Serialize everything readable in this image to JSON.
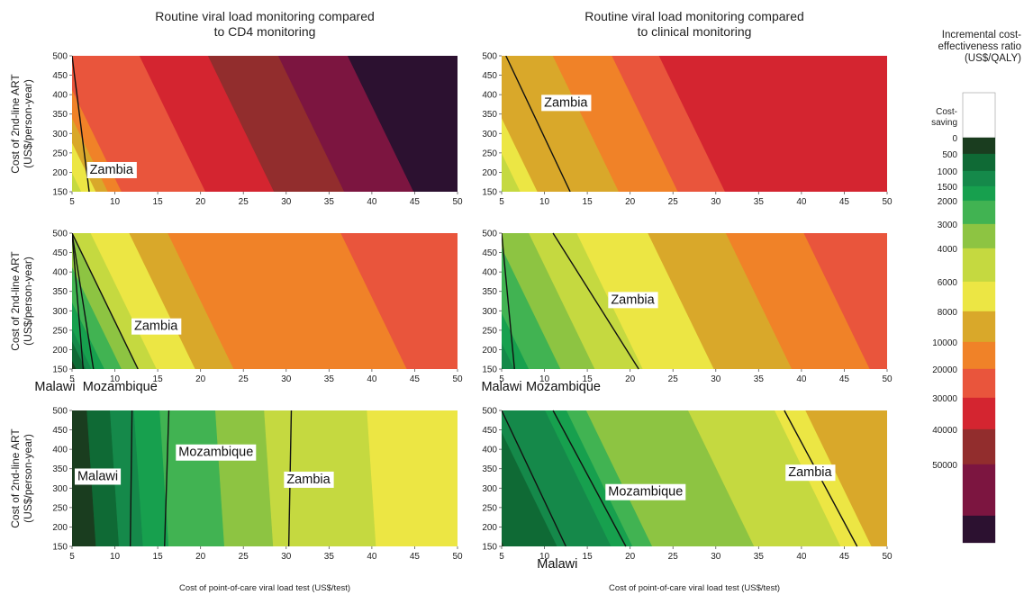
{
  "chart_data": {
    "type": "heatmap",
    "column_titles": [
      [
        "Routine viral load monitoring compared",
        "to CD4 monitoring"
      ],
      [
        "Routine viral load monitoring compared",
        "to clinical monitoring"
      ]
    ],
    "ylabel": [
      "Cost of 2nd-line ART",
      "(US$/person-year)"
    ],
    "xlabel": "Cost of point-of-care viral load test (US$/test)",
    "xticks": [
      5,
      10,
      15,
      20,
      25,
      30,
      35,
      40,
      45,
      50
    ],
    "yticks": [
      150,
      200,
      250,
      300,
      350,
      400,
      450,
      500
    ],
    "xlim": [
      5,
      50
    ],
    "ylim": [
      150,
      500
    ],
    "colorbar": {
      "title": [
        "Incremental cost-",
        "effectiveness ratio",
        "(US$/QALY)"
      ],
      "levels": [
        {
          "label": [
            "Cost-",
            "saving"
          ],
          "color": "#ffffff"
        },
        {
          "label": [
            "0"
          ],
          "color": "#1a3d1f"
        },
        {
          "label": [
            "500"
          ],
          "color": "#0f6a35"
        },
        {
          "label": [
            "1000"
          ],
          "color": "#15894a"
        },
        {
          "label": [
            "1500"
          ],
          "color": "#17a04e"
        },
        {
          "label": [
            "2000"
          ],
          "color": "#41b352"
        },
        {
          "label": [
            "3000"
          ],
          "color": "#8dc442"
        },
        {
          "label": [
            "4000"
          ],
          "color": "#c5d940"
        },
        {
          "label": [
            "6000"
          ],
          "color": "#ece644"
        },
        {
          "label": [
            "8000"
          ],
          "color": "#d9a82a"
        },
        {
          "label": [
            "10000"
          ],
          "color": "#f08228"
        },
        {
          "label": [
            "20000"
          ],
          "color": "#e9553c"
        },
        {
          "label": [
            "30000"
          ],
          "color": "#d42530"
        },
        {
          "label": [
            "40000"
          ],
          "color": "#922d2d"
        },
        {
          "label": [
            "50000"
          ],
          "color": "#7c1540"
        },
        {
          "label": [
            ""
          ],
          "color": "#2c1130"
        }
      ]
    },
    "panels": [
      {
        "row": 0,
        "col": 0,
        "slope": -0.022,
        "boundaries": [
          6.1,
          7.8,
          9.2,
          10.8,
          20.6,
          28.6,
          36.8,
          44.9
        ],
        "start_level": 7,
        "country_lines": [
          {
            "name": "Zambia",
            "x_at_ymin": 7.0,
            "x_at_ymax": 5.0,
            "clip": true
          }
        ],
        "labels": [
          {
            "text": "Zambia",
            "x": 9.6,
            "y": 208
          }
        ]
      },
      {
        "row": 0,
        "col": 1,
        "slope": -0.022,
        "boundaries": [
          5.2,
          7.2,
          9.2,
          18.7,
          25.6,
          31.1
        ],
        "start_level": 6,
        "country_lines": [
          {
            "name": "Zambia",
            "x_at_ymin": 13.0,
            "x_at_ymax": 5.5,
            "clip": true
          }
        ],
        "labels": [
          {
            "text": "Zambia",
            "x": 12.5,
            "y": 381
          }
        ]
      },
      {
        "row": 1,
        "col": 0,
        "slope": -0.022,
        "boundaries": [
          5.5,
          6.6,
          7.3,
          8.8,
          10.8,
          12.8,
          14.9,
          19.4,
          23.9,
          44.1
        ],
        "start_level": 1,
        "country_lines": [
          {
            "name": "Zambia",
            "x_at_ymin": 12.7,
            "x_at_ymax": 5.0,
            "clip": true
          },
          {
            "name": "Mozambique",
            "x_at_ymin": 7.5,
            "x_at_ymax": 5.0,
            "clip": true
          },
          {
            "name": "Malawi",
            "x_at_ymin": 6.3,
            "x_at_ymax": 5.0,
            "clip": true
          }
        ],
        "labels": [
          {
            "text": "Zambia",
            "x": 14.8,
            "y": 262
          },
          {
            "text": "Malawi",
            "x": 3.0,
            "y": 106
          },
          {
            "text": "Mozambique",
            "x": 10.6,
            "y": 106
          }
        ]
      },
      {
        "row": 1,
        "col": 1,
        "slope": -0.022,
        "boundaries": [
          5.2,
          6.5,
          8.2,
          11.9,
          15.9,
          21.5,
          29.8,
          38.9,
          48.0
        ],
        "start_level": 2,
        "country_lines": [
          {
            "name": "Zambia",
            "x_at_ymin": 21.0,
            "x_at_ymax": 11.0,
            "clip": false
          },
          {
            "name": "Mozambique",
            "x_at_ymin": 6.5,
            "x_at_ymax": 5.0,
            "clip": true
          }
        ],
        "labels": [
          {
            "text": "Zambia",
            "x": 20.3,
            "y": 330
          },
          {
            "text": "Malawi",
            "x": 5.0,
            "y": 106
          },
          {
            "text": "Mozambique",
            "x": 12.2,
            "y": 106
          }
        ]
      },
      {
        "row": 2,
        "col": 0,
        "slope": -0.003,
        "boundaries": [
          7.8,
          10.5,
          13.3,
          16.3,
          22.8,
          28.5,
          40.5
        ],
        "start_level": 1,
        "country_lines": [
          {
            "name": "Malawi",
            "x_at_ymin": 11.8,
            "x_at_ymax": 12.0,
            "clip": false
          },
          {
            "name": "Mozambique",
            "x_at_ymin": 15.8,
            "x_at_ymax": 16.3,
            "clip": false
          },
          {
            "name": "Zambia",
            "x_at_ymin": 30.3,
            "x_at_ymax": 30.6,
            "clip": false
          }
        ],
        "labels": [
          {
            "text": "Malawi",
            "x": 8.0,
            "y": 332
          },
          {
            "text": "Mozambique",
            "x": 21.8,
            "y": 394
          },
          {
            "text": "Zambia",
            "x": 32.6,
            "y": 324
          }
        ]
      },
      {
        "row": 2,
        "col": 1,
        "slope": -0.022,
        "boundaries": [
          5.3,
          11.5,
          17.8,
          20.3,
          22.6,
          34.5,
          44.6,
          48.2
        ],
        "start_level": 1,
        "country_lines": [
          {
            "name": "Malawi",
            "x_at_ymin": 12.5,
            "x_at_ymax": 5.0,
            "clip": true
          },
          {
            "name": "Mozambique",
            "x_at_ymin": 19.5,
            "x_at_ymax": 11.0,
            "clip": false
          },
          {
            "name": "Zambia",
            "x_at_ymin": 46.5,
            "x_at_ymax": 38.0,
            "clip": false
          }
        ],
        "labels": [
          {
            "text": "Mozambique",
            "x": 21.8,
            "y": 292
          },
          {
            "text": "Zambia",
            "x": 41.0,
            "y": 342
          },
          {
            "text": "Malawi",
            "x": 11.5,
            "y": 106
          }
        ]
      }
    ]
  }
}
